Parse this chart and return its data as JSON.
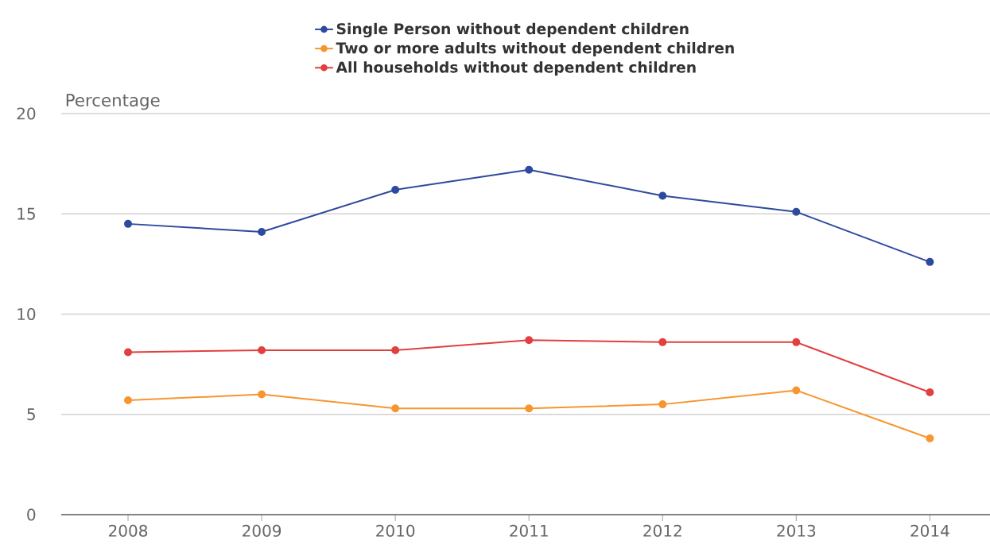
{
  "chart_data": {
    "type": "line",
    "ylabel": "Percentage",
    "x": [
      2008,
      2009,
      2010,
      2011,
      2012,
      2013,
      2014
    ],
    "xlim": [
      2007.5,
      2014.45
    ],
    "xticks": [
      2008,
      2009,
      2010,
      2011,
      2012,
      2013,
      2014
    ],
    "ylim": [
      0,
      20
    ],
    "yticks": [
      0,
      5,
      10,
      15,
      20
    ],
    "grid": "y",
    "legend": "top",
    "marker": "circle",
    "line_style": "solid",
    "series": [
      {
        "name": "Single Person without dependent children",
        "color": "#2e4a9e",
        "values": [
          14.5,
          14.1,
          16.2,
          17.2,
          15.9,
          15.1,
          12.6
        ]
      },
      {
        "name": "Two or more adults without dependent children",
        "color": "#f7962f",
        "values": [
          5.7,
          6.0,
          5.3,
          5.3,
          5.5,
          6.2,
          3.8
        ]
      },
      {
        "name": "All households without dependent children",
        "color": "#e23f3f",
        "values": [
          8.1,
          8.2,
          8.2,
          8.7,
          8.6,
          8.6,
          6.1
        ]
      }
    ]
  }
}
